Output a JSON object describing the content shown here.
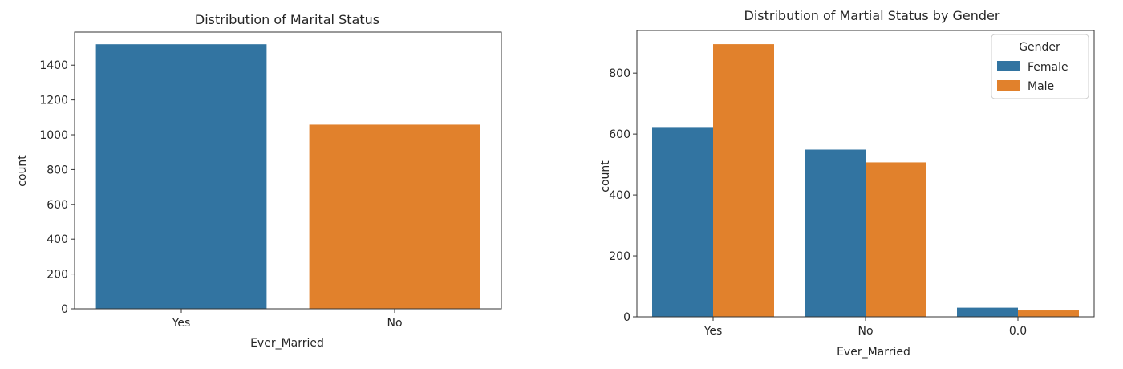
{
  "chart_data": [
    {
      "type": "bar",
      "title": "Distribution of Marital Status",
      "xlabel": "Ever_Married",
      "ylabel": "count",
      "categories": [
        "Yes",
        "No"
      ],
      "values": [
        1520,
        1058
      ],
      "colors": [
        "#3274a1",
        "#e1812c"
      ],
      "ylim": [
        0,
        1590
      ],
      "yticks": [
        0,
        200,
        400,
        600,
        800,
        1000,
        1200,
        1400
      ],
      "grid": false
    },
    {
      "type": "bar",
      "title": "Distribution of Martial Status by Gender",
      "xlabel": "Ever_Married",
      "ylabel": "count",
      "categories": [
        "Yes",
        "No",
        "0.0"
      ],
      "series": [
        {
          "name": "Female",
          "values": [
            623,
            549,
            30
          ],
          "color": "#3274a1"
        },
        {
          "name": "Male",
          "values": [
            895,
            507,
            21
          ],
          "color": "#e1812c"
        }
      ],
      "ylim": [
        0,
        940
      ],
      "yticks": [
        0,
        200,
        400,
        600,
        800
      ],
      "legend": {
        "title": "Gender",
        "placement": "top-right"
      },
      "grid": false
    }
  ]
}
